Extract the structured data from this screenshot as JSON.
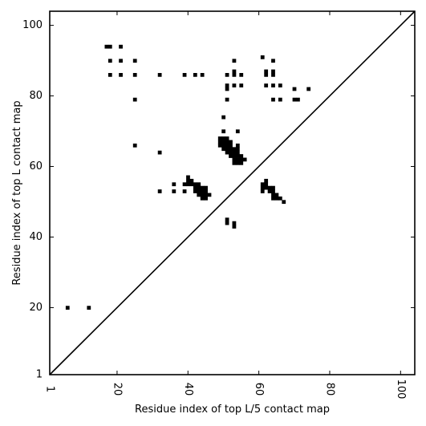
{
  "chart_data": {
    "type": "scatter",
    "xlabel": "Residue index of top L/5 contact map",
    "ylabel": "Residue index of top L contact map",
    "xlim": [
      1,
      104
    ],
    "ylim": [
      1,
      104
    ],
    "x_ticks": [
      1,
      20,
      40,
      60,
      80,
      100
    ],
    "y_ticks": [
      1,
      20,
      40,
      60,
      80,
      100
    ],
    "x_tick_labels": [
      "1",
      "20",
      "40",
      "60",
      "80",
      "100"
    ],
    "y_tick_labels": [
      "1",
      "20",
      "40",
      "60",
      "80",
      "100"
    ],
    "diagonal": true,
    "grid": false,
    "legend": "none",
    "marker_color": "#000000",
    "points": [
      [
        6,
        20
      ],
      [
        12,
        20
      ],
      [
        17,
        94
      ],
      [
        18,
        94
      ],
      [
        21,
        94
      ],
      [
        18,
        90
      ],
      [
        21,
        90
      ],
      [
        25,
        90
      ],
      [
        18,
        86
      ],
      [
        21,
        86
      ],
      [
        25,
        86
      ],
      [
        32,
        86
      ],
      [
        39,
        86
      ],
      [
        42,
        86
      ],
      [
        44,
        86
      ],
      [
        25,
        79
      ],
      [
        25,
        66
      ],
      [
        32,
        64
      ],
      [
        53,
        90
      ],
      [
        61,
        91
      ],
      [
        64,
        90
      ],
      [
        51,
        86
      ],
      [
        53,
        87
      ],
      [
        53,
        86
      ],
      [
        55,
        86
      ],
      [
        62,
        87
      ],
      [
        62,
        86
      ],
      [
        64,
        87
      ],
      [
        64,
        86
      ],
      [
        51,
        83
      ],
      [
        51,
        82
      ],
      [
        53,
        83
      ],
      [
        55,
        83
      ],
      [
        62,
        83
      ],
      [
        64,
        83
      ],
      [
        66,
        83
      ],
      [
        51,
        79
      ],
      [
        64,
        79
      ],
      [
        66,
        79
      ],
      [
        70,
        82
      ],
      [
        74,
        82
      ],
      [
        70,
        79
      ],
      [
        71,
        79
      ],
      [
        50,
        74
      ],
      [
        50,
        70
      ],
      [
        54,
        70
      ],
      [
        49,
        68
      ],
      [
        50,
        68
      ],
      [
        51,
        68
      ],
      [
        49,
        67
      ],
      [
        50,
        67
      ],
      [
        51,
        67
      ],
      [
        52,
        67
      ],
      [
        49,
        66
      ],
      [
        50,
        66
      ],
      [
        51,
        66
      ],
      [
        52,
        66
      ],
      [
        54,
        66
      ],
      [
        50,
        65
      ],
      [
        51,
        65
      ],
      [
        52,
        65
      ],
      [
        53,
        65
      ],
      [
        54,
        65
      ],
      [
        51,
        64
      ],
      [
        52,
        64
      ],
      [
        53,
        64
      ],
      [
        54,
        64
      ],
      [
        52,
        63
      ],
      [
        53,
        63
      ],
      [
        54,
        63
      ],
      [
        55,
        63
      ],
      [
        53,
        62
      ],
      [
        54,
        62
      ],
      [
        55,
        62
      ],
      [
        56,
        62
      ],
      [
        53,
        61
      ],
      [
        54,
        61
      ],
      [
        55,
        61
      ],
      [
        40,
        57
      ],
      [
        40,
        56
      ],
      [
        41,
        56
      ],
      [
        36,
        55
      ],
      [
        39,
        55
      ],
      [
        40,
        55
      ],
      [
        41,
        55
      ],
      [
        42,
        55
      ],
      [
        43,
        55
      ],
      [
        42,
        54
      ],
      [
        43,
        54
      ],
      [
        44,
        54
      ],
      [
        45,
        54
      ],
      [
        42,
        53
      ],
      [
        43,
        53
      ],
      [
        44,
        53
      ],
      [
        45,
        53
      ],
      [
        43,
        52
      ],
      [
        44,
        52
      ],
      [
        45,
        52
      ],
      [
        46,
        52
      ],
      [
        44,
        51
      ],
      [
        45,
        51
      ],
      [
        32,
        53
      ],
      [
        36,
        53
      ],
      [
        39,
        53
      ],
      [
        62,
        56
      ],
      [
        61,
        55
      ],
      [
        62,
        55
      ],
      [
        61,
        54
      ],
      [
        62,
        54
      ],
      [
        63,
        54
      ],
      [
        64,
        54
      ],
      [
        61,
        53
      ],
      [
        63,
        53
      ],
      [
        64,
        53
      ],
      [
        64,
        52
      ],
      [
        65,
        52
      ],
      [
        64,
        51
      ],
      [
        65,
        51
      ],
      [
        66,
        51
      ],
      [
        67,
        50
      ],
      [
        51,
        45
      ],
      [
        51,
        44
      ],
      [
        53,
        44
      ],
      [
        53,
        43
      ]
    ]
  }
}
